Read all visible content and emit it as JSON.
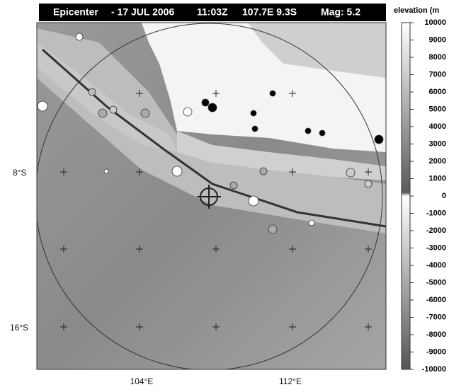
{
  "header": {
    "label": "Epicenter",
    "date": "- 17 JUL 2006",
    "time": "11:03Z",
    "location": "107.7E 9.3S",
    "magnitude": "Mag: 5.2"
  },
  "map": {
    "lat_labels": [
      "8°S",
      "16°S"
    ],
    "lon_labels": [
      "104°E",
      "112°E"
    ]
  },
  "colorbar": {
    "title": "elevation (m",
    "ticks": [
      10000,
      9000,
      8000,
      7000,
      6000,
      5000,
      4000,
      3000,
      2000,
      1000,
      0,
      -1000,
      -2000,
      -3000,
      -4000,
      -5000,
      -6000,
      -7000,
      -8000,
      -9000,
      -10000
    ]
  }
}
